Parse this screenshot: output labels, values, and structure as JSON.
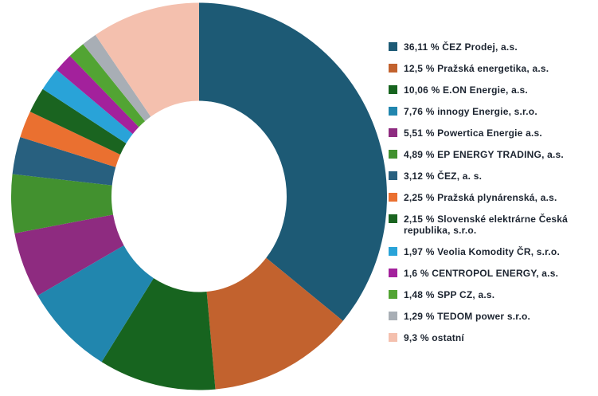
{
  "chart_data": {
    "type": "pie",
    "subtype": "donut",
    "title": "",
    "unit": "%",
    "legend_position": "right",
    "start_angle_deg": 0,
    "direction": "clockwise",
    "inner_radius_ratio": 0.48,
    "background_color": "#ffffff",
    "text_color": "#1c2430",
    "categories": [
      "ČEZ Prodej, a.s.",
      "Pražská energetika, a.s.",
      "E.ON Energie, a.s.",
      "innogy Energie, s.r.o.",
      "Powertica Energie a.s.",
      "EP ENERGY TRADING, a.s.",
      "ČEZ, a. s.",
      "Pražská plynárenská, a.s.",
      "Slovenské elektrárne Česká republika, s.r.o.",
      "Veolia Komodity ČR, s.r.o.",
      "CENTROPOL ENERGY, a.s.",
      "SPP CZ, a.s.",
      "TEDOM power s.r.o.",
      "ostatní"
    ],
    "values": [
      36.11,
      12.5,
      10.06,
      7.76,
      5.51,
      4.89,
      3.12,
      2.25,
      2.15,
      1.97,
      1.6,
      1.48,
      1.29,
      9.3
    ],
    "items": [
      {
        "name": "ČEZ Prodej, a.s.",
        "value": 36.11,
        "display": "36,11 % ČEZ Prodej, a.s.",
        "color": "#1d5a75"
      },
      {
        "name": "Pražská energetika, a.s.",
        "value": 12.5,
        "display": "12,5 % Pražská energetika, a.s.",
        "color": "#c2622e"
      },
      {
        "name": "E.ON Energie, a.s.",
        "value": 10.06,
        "display": "10,06 % E.ON Energie, a.s.",
        "color": "#17641f"
      },
      {
        "name": "innogy Energie, s.r.o.",
        "value": 7.76,
        "display": "7,76 % innogy Energie, s.r.o.",
        "color": "#2186ae"
      },
      {
        "name": "Powertica Energie a.s.",
        "value": 5.51,
        "display": "5,51 % Powertica Energie a.s.",
        "color": "#8e2b80"
      },
      {
        "name": "EP ENERGY TRADING, a.s.",
        "value": 4.89,
        "display": "4,89 % EP ENERGY TRADING, a.s.",
        "color": "#42912f"
      },
      {
        "name": "ČEZ, a. s.",
        "value": 3.12,
        "display": "3,12 % ČEZ, a. s.",
        "color": "#28607f"
      },
      {
        "name": "Pražská plynárenská, a.s.",
        "value": 2.25,
        "display": "2,25 % Pražská plynárenská, a.s.",
        "color": "#ea7030"
      },
      {
        "name": "Slovenské elektrárne Česká republika, s.r.o.",
        "value": 2.15,
        "display": "2,15 % Slovenské elektrárne Česká repub­lika, s.r.o.",
        "color": "#1a6420"
      },
      {
        "name": "Veolia Komodity ČR, s.r.o.",
        "value": 1.97,
        "display": "1,97 % Veolia Komodity ČR, s.r.o.",
        "color": "#29a3d8"
      },
      {
        "name": "CENTROPOL ENERGY, a.s.",
        "value": 1.6,
        "display": "1,6 % CENTROPOL ENERGY, a.s.",
        "color": "#a3219c"
      },
      {
        "name": "SPP CZ, a.s.",
        "value": 1.48,
        "display": "1,48 % SPP CZ, a.s.",
        "color": "#52a433"
      },
      {
        "name": "TEDOM power s.r.o.",
        "value": 1.29,
        "display": "1,29 % TEDOM power s.r.o.",
        "color": "#a8aeb5"
      },
      {
        "name": "ostatní",
        "value": 9.3,
        "display": "9,3 % ostatní",
        "color": "#f4c0ae"
      }
    ]
  }
}
